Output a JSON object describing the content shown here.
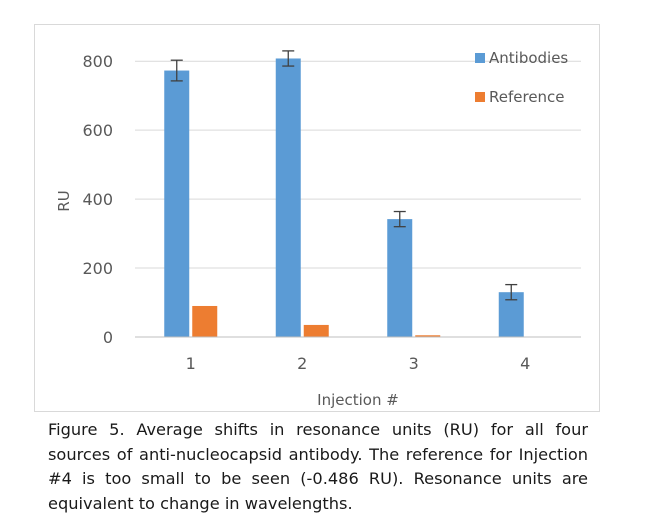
{
  "chart_data": {
    "type": "bar",
    "categories": [
      "1",
      "2",
      "3",
      "4"
    ],
    "series": [
      {
        "name": "Antibodies",
        "color": "#5b9bd5",
        "values": [
          773,
          808,
          342,
          130
        ],
        "error": [
          30,
          22,
          22,
          22
        ]
      },
      {
        "name": "Reference",
        "color": "#ed7d31",
        "values": [
          90,
          35,
          5,
          -0.486
        ]
      }
    ],
    "xlabel": "Injection #",
    "ylabel": "RU",
    "ylim": [
      0,
      850
    ],
    "yticks": [
      0,
      200,
      400,
      600,
      800
    ],
    "grid": true,
    "legend_position": "top-right"
  },
  "caption": "Figure 5. Average shifts in resonance units (RU) for all four sources of anti-nucleocapsid antibody. The reference for Injection #4 is too small to be seen (-0.486 RU). Resonance units are equivalent to change in wavelengths."
}
